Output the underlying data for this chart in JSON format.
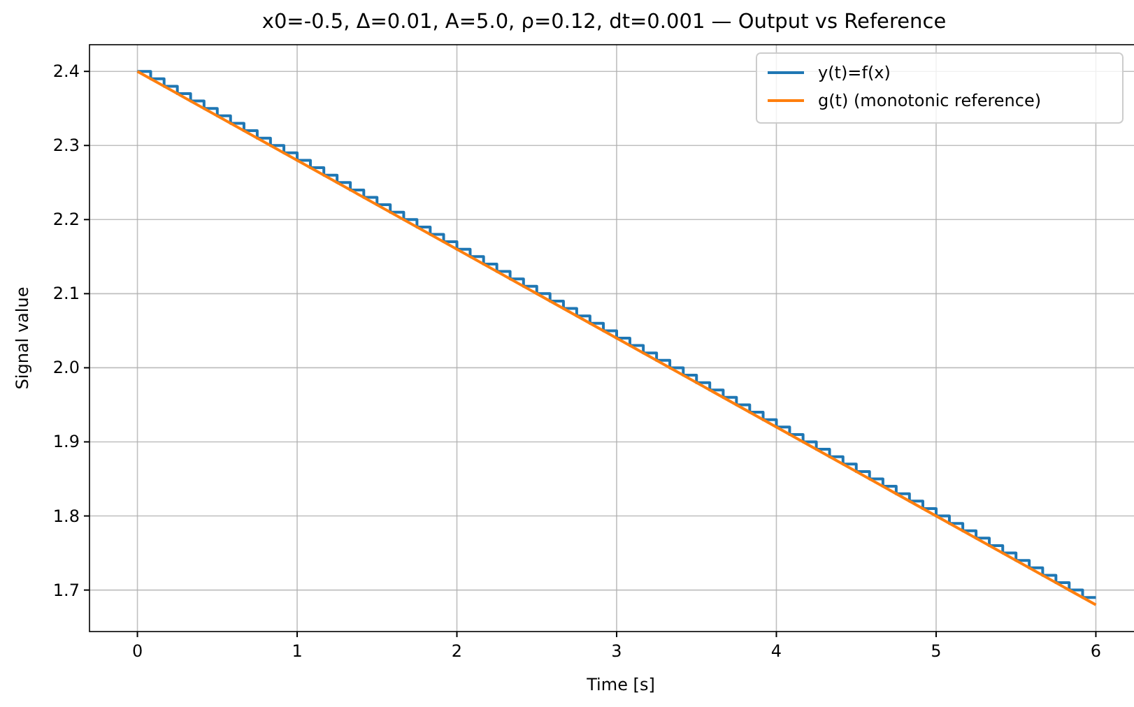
{
  "chart_data": {
    "type": "line",
    "title": "x0=-0.5, Δ=0.01, A=5.0, ρ=0.12, dt=0.001 — Output vs Reference",
    "xlabel": "Time [s]",
    "ylabel": "Signal value",
    "xlim": [
      -0.3,
      6.3
    ],
    "ylim": [
      1.644,
      2.436
    ],
    "xticks": [
      0,
      1,
      2,
      3,
      4,
      5,
      6
    ],
    "yticks": [
      1.7,
      1.8,
      1.9,
      {
        "value": 2,
        "label": "2.0"
      },
      2.1,
      2.2,
      2.3,
      2.4
    ],
    "grid": true,
    "legend": "top right",
    "series": [
      {
        "name": "y(t)=f(x)",
        "type": "step",
        "color": "#1f77b4",
        "x": [
          0,
          0.083,
          0.167,
          0.25,
          0.333,
          0.417,
          0.5,
          0.583,
          0.667,
          0.75,
          0.833,
          0.917,
          1,
          1.083,
          1.167,
          1.25,
          1.333,
          1.417,
          1.5,
          1.583,
          1.667,
          1.75,
          1.833,
          1.917,
          2,
          2.083,
          2.167,
          2.25,
          2.333,
          2.417,
          2.5,
          2.583,
          2.667,
          2.75,
          2.833,
          2.917,
          3,
          3.083,
          3.167,
          3.25,
          3.333,
          3.417,
          3.5,
          3.583,
          3.667,
          3.75,
          3.833,
          3.917,
          4,
          4.083,
          4.167,
          4.25,
          4.333,
          4.417,
          4.5,
          4.583,
          4.667,
          4.75,
          4.833,
          4.917,
          5,
          5.083,
          5.167,
          5.25,
          5.333,
          5.417,
          5.5,
          5.583,
          5.667,
          5.75,
          5.833,
          5.917,
          6
        ],
        "values": [
          2.4,
          2.39,
          2.38,
          2.37,
          2.36,
          2.35,
          2.34,
          2.33,
          2.32,
          2.31,
          2.3,
          2.29,
          2.28,
          2.27,
          2.26,
          2.25,
          2.24,
          2.23,
          2.22,
          2.21,
          2.2,
          2.19,
          2.18,
          2.17,
          2.16,
          2.15,
          2.14,
          2.13,
          2.12,
          2.11,
          2.1,
          2.09,
          2.08,
          2.07,
          2.06,
          2.05,
          2.04,
          2.03,
          2.02,
          2.01,
          2,
          1.99,
          1.98,
          1.97,
          1.96,
          1.95,
          1.94,
          1.93,
          1.92,
          1.91,
          1.9,
          1.89,
          1.88,
          1.87,
          1.86,
          1.85,
          1.84,
          1.83,
          1.82,
          1.81,
          1.8,
          1.79,
          1.78,
          1.77,
          1.76,
          1.75,
          1.74,
          1.73,
          1.72,
          1.71,
          1.7,
          1.69,
          1.69
        ]
      },
      {
        "name": "g(t) (monotonic reference)",
        "color": "#ff7f0e",
        "x": [
          0,
          6
        ],
        "values": [
          2.4,
          1.68
        ]
      }
    ]
  }
}
